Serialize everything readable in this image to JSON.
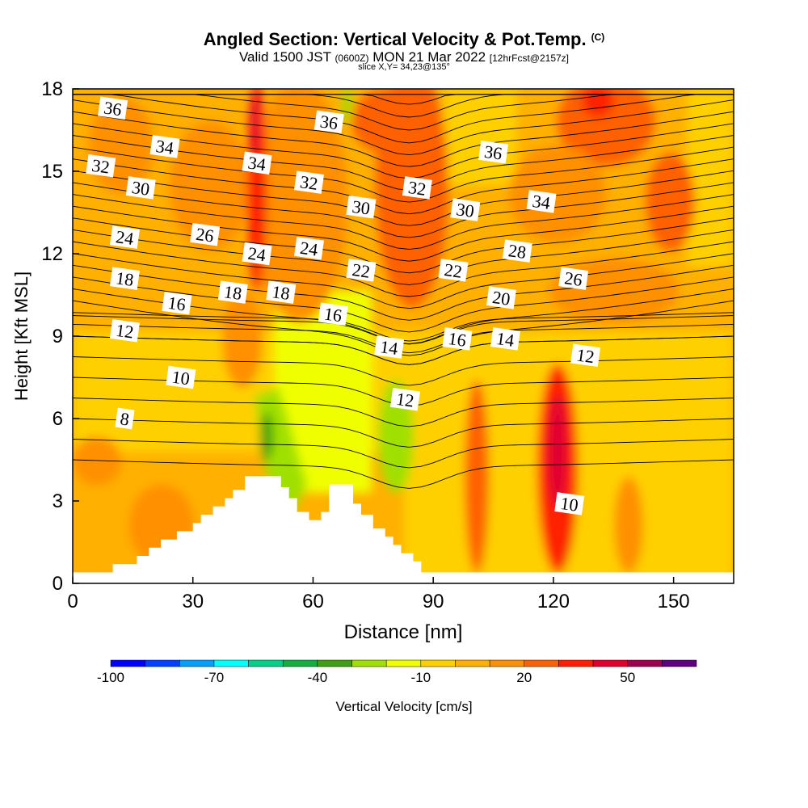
{
  "header": {
    "title": "Angled Section: Vertical Velocity & Pot.Temp.",
    "copyright": "(C)",
    "valid_prefix": "Valid 1500 JST",
    "valid_zulu": "(0600Z)",
    "valid_date": "MON 21 Mar 2022",
    "forecast": "[12hrFcst@2157z]",
    "slice": "slice X,Y= 34,23@135°"
  },
  "chart_data": {
    "type": "heatmap",
    "xlabel": "Distance [nm]",
    "ylabel": "Height [Kft MSL]",
    "xlim": [
      0,
      165
    ],
    "ylim": [
      0,
      18
    ],
    "x_ticks": [
      0,
      30,
      60,
      90,
      120,
      150
    ],
    "y_ticks": [
      0,
      3,
      6,
      9,
      12,
      15,
      18
    ],
    "colorbar": {
      "label": "Vertical Velocity [cm/s]",
      "tick_values": [
        -100,
        -70,
        -40,
        -10,
        20,
        50
      ],
      "bins": [
        -100,
        -90,
        -80,
        -70,
        -60,
        -50,
        -40,
        -30,
        -20,
        -10,
        0,
        10,
        20,
        30,
        40,
        50,
        60,
        70
      ],
      "colors": [
        "#0000ff",
        "#0040ff",
        "#00a0ff",
        "#00ffff",
        "#00d088",
        "#10b040",
        "#40a010",
        "#a0e000",
        "#f0ff00",
        "#ffd000",
        "#ffb000",
        "#ff9000",
        "#ff6000",
        "#ff2000",
        "#e00030",
        "#a00050",
        "#600080"
      ]
    },
    "isentropes": [
      {
        "label": "8",
        "x": 13,
        "y": 6.0
      },
      {
        "label": "10",
        "x": 27,
        "y": 7.5
      },
      {
        "label": "10",
        "x": 124,
        "y": 2.9
      },
      {
        "label": "12",
        "x": 13,
        "y": 9.2
      },
      {
        "label": "12",
        "x": 83,
        "y": 6.7
      },
      {
        "label": "12",
        "x": 128,
        "y": 8.3
      },
      {
        "label": "14",
        "x": 79,
        "y": 8.6
      },
      {
        "label": "14",
        "x": 108,
        "y": 8.9
      },
      {
        "label": "16",
        "x": 26,
        "y": 10.2
      },
      {
        "label": "16",
        "x": 65,
        "y": 9.8
      },
      {
        "label": "16",
        "x": 96,
        "y": 8.9
      },
      {
        "label": "18",
        "x": 13,
        "y": 11.1
      },
      {
        "label": "18",
        "x": 40,
        "y": 10.6
      },
      {
        "label": "18",
        "x": 52,
        "y": 10.6
      },
      {
        "label": "20",
        "x": 107,
        "y": 10.4
      },
      {
        "label": "22",
        "x": 72,
        "y": 11.4
      },
      {
        "label": "22",
        "x": 95,
        "y": 11.4
      },
      {
        "label": "24",
        "x": 13,
        "y": 12.6
      },
      {
        "label": "24",
        "x": 46,
        "y": 12.0
      },
      {
        "label": "24",
        "x": 59,
        "y": 12.2
      },
      {
        "label": "26",
        "x": 33,
        "y": 12.7
      },
      {
        "label": "26",
        "x": 125,
        "y": 11.1
      },
      {
        "label": "28",
        "x": 111,
        "y": 12.1
      },
      {
        "label": "30",
        "x": 17,
        "y": 14.4
      },
      {
        "label": "30",
        "x": 72,
        "y": 13.7
      },
      {
        "label": "30",
        "x": 98,
        "y": 13.6
      },
      {
        "label": "32",
        "x": 7,
        "y": 15.2
      },
      {
        "label": "32",
        "x": 59,
        "y": 14.6
      },
      {
        "label": "32",
        "x": 86,
        "y": 14.4
      },
      {
        "label": "34",
        "x": 23,
        "y": 15.9
      },
      {
        "label": "34",
        "x": 46,
        "y": 15.3
      },
      {
        "label": "34",
        "x": 117,
        "y": 13.9
      },
      {
        "label": "36",
        "x": 10,
        "y": 17.3
      },
      {
        "label": "36",
        "x": 64,
        "y": 16.8
      },
      {
        "label": "36",
        "x": 105,
        "y": 15.7
      }
    ],
    "terrain": [
      [
        0,
        0.4
      ],
      [
        10,
        0.4
      ],
      [
        10,
        0.7
      ],
      [
        16,
        0.7
      ],
      [
        16,
        1.0
      ],
      [
        19,
        1.0
      ],
      [
        19,
        1.3
      ],
      [
        22,
        1.3
      ],
      [
        22,
        1.6
      ],
      [
        26,
        1.6
      ],
      [
        26,
        1.9
      ],
      [
        30,
        1.9
      ],
      [
        30,
        2.2
      ],
      [
        32,
        2.2
      ],
      [
        32,
        2.5
      ],
      [
        35,
        2.5
      ],
      [
        35,
        2.8
      ],
      [
        38,
        2.8
      ],
      [
        38,
        3.1
      ],
      [
        40,
        3.1
      ],
      [
        40,
        3.4
      ],
      [
        43,
        3.4
      ],
      [
        43,
        3.9
      ],
      [
        52,
        3.9
      ],
      [
        52,
        3.5
      ],
      [
        54,
        3.5
      ],
      [
        54,
        3.1
      ],
      [
        56,
        3.1
      ],
      [
        56,
        2.6
      ],
      [
        59,
        2.6
      ],
      [
        59,
        2.3
      ],
      [
        62,
        2.3
      ],
      [
        62,
        2.6
      ],
      [
        64,
        2.6
      ],
      [
        64,
        3.6
      ],
      [
        70,
        3.6
      ],
      [
        70,
        2.9
      ],
      [
        72,
        2.9
      ],
      [
        72,
        2.5
      ],
      [
        75,
        2.5
      ],
      [
        75,
        2.0
      ],
      [
        78,
        2.0
      ],
      [
        78,
        1.7
      ],
      [
        80,
        1.7
      ],
      [
        80,
        1.4
      ],
      [
        82,
        1.4
      ],
      [
        82,
        1.1
      ],
      [
        85,
        1.1
      ],
      [
        85,
        0.8
      ],
      [
        87,
        0.8
      ],
      [
        87,
        0.4
      ],
      [
        165,
        0.4
      ]
    ]
  }
}
